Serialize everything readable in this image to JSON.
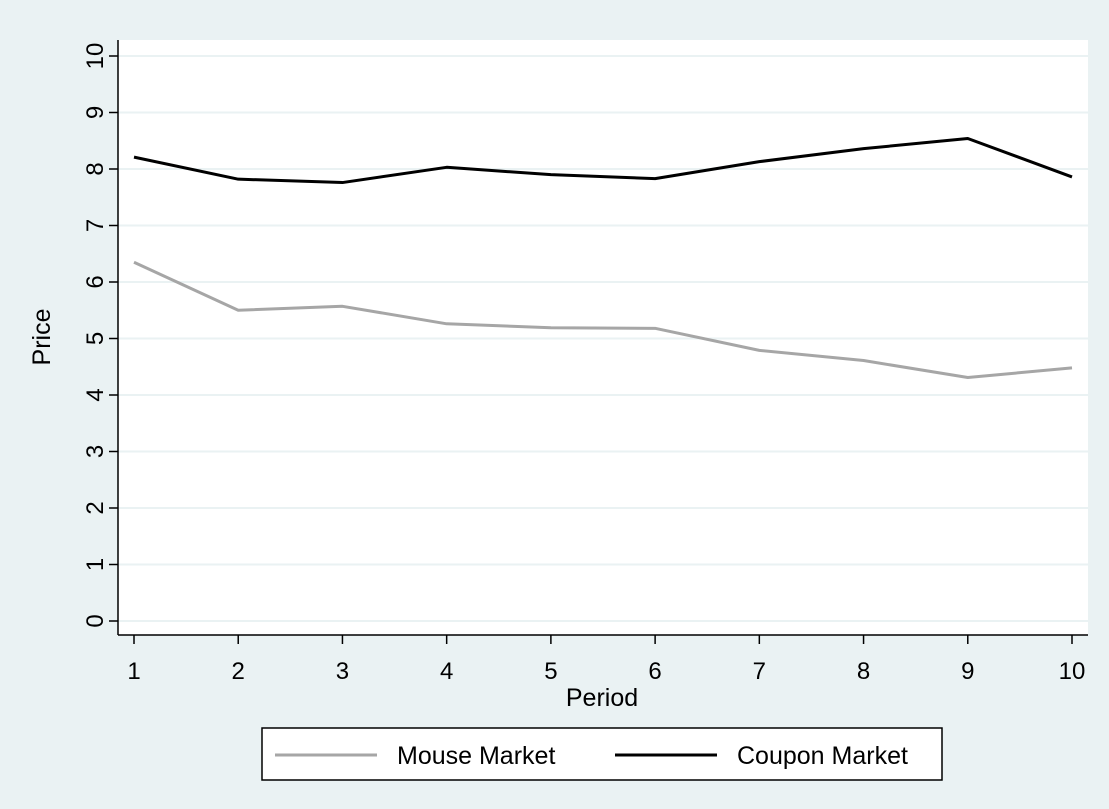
{
  "chart_data": {
    "type": "line",
    "title": "",
    "xlabel": "Period",
    "ylabel": "Price",
    "x": [
      1,
      2,
      3,
      4,
      5,
      6,
      7,
      8,
      9,
      10
    ],
    "xlim": [
      1,
      10
    ],
    "ylim": [
      0,
      10
    ],
    "xticks": [
      "1",
      "2",
      "3",
      "4",
      "5",
      "6",
      "7",
      "8",
      "9",
      "10"
    ],
    "yticks": [
      "0",
      "1",
      "2",
      "3",
      "4",
      "5",
      "6",
      "7",
      "8",
      "9",
      "10"
    ],
    "grid": true,
    "legend_position": "bottom",
    "series": [
      {
        "name": "Mouse Market",
        "color": "#a6a6a6",
        "values": [
          6.35,
          5.5,
          5.57,
          5.26,
          5.19,
          5.18,
          4.79,
          4.61,
          4.31,
          4.48
        ]
      },
      {
        "name": "Coupon Market",
        "color": "#000000",
        "values": [
          8.21,
          7.82,
          7.76,
          8.03,
          7.9,
          7.83,
          8.13,
          8.36,
          8.54,
          7.86
        ]
      }
    ],
    "background_color": "#eaf2f3",
    "plot_background_color": "#ffffff",
    "gridline_color": "#eaf2f3"
  }
}
